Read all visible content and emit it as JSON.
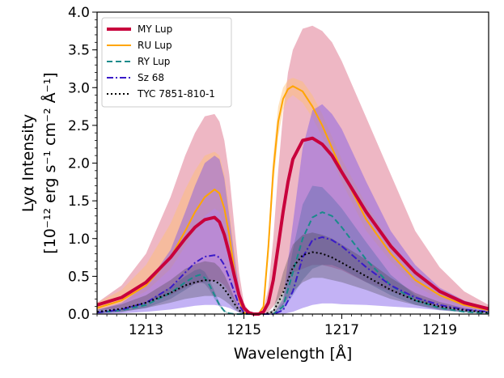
{
  "chart_data": {
    "type": "line",
    "title": "",
    "xlabel": "Wavelength [Å]",
    "ylabel_line1": "Lyα Intensity",
    "ylabel_line2": "[10⁻¹² erg s⁻¹ cm⁻² Å⁻¹]",
    "xlim": [
      1212.0,
      1220.0
    ],
    "ylim": [
      0.0,
      4.0
    ],
    "xticks": [
      1213,
      1215,
      1217,
      1219
    ],
    "xtick_labels": [
      "1213",
      "1215",
      "1217",
      "1219"
    ],
    "yticks": [
      0.0,
      0.5,
      1.0,
      1.5,
      2.0,
      2.5,
      3.0,
      3.5,
      4.0
    ],
    "ytick_labels": [
      "0.0",
      "0.5",
      "1.0",
      "1.5",
      "2.0",
      "2.5",
      "3.0",
      "3.5",
      "4.0"
    ],
    "legend_position": "top-left",
    "series": [
      {
        "name": "MY Lup",
        "color": "#c8003c",
        "dash": "solid",
        "x": [
          1212.0,
          1212.5,
          1213.0,
          1213.5,
          1213.8,
          1214.0,
          1214.2,
          1214.4,
          1214.5,
          1214.6,
          1214.7,
          1214.8,
          1214.9,
          1215.0,
          1215.1,
          1215.2,
          1215.3,
          1215.4,
          1215.5,
          1215.6,
          1215.7,
          1215.8,
          1215.9,
          1216.0,
          1216.2,
          1216.4,
          1216.6,
          1216.8,
          1217.0,
          1217.5,
          1218.0,
          1218.5,
          1219.0,
          1219.5,
          1220.0
        ],
        "y": [
          0.12,
          0.22,
          0.42,
          0.75,
          1.0,
          1.15,
          1.25,
          1.28,
          1.22,
          1.05,
          0.8,
          0.52,
          0.25,
          0.08,
          0.02,
          0.0,
          0.0,
          0.03,
          0.15,
          0.45,
          0.9,
          1.35,
          1.75,
          2.05,
          2.3,
          2.33,
          2.25,
          2.1,
          1.88,
          1.35,
          0.9,
          0.55,
          0.3,
          0.15,
          0.07
        ],
        "band_low": [
          0.05,
          0.08,
          0.15,
          0.25,
          0.35,
          0.4,
          0.42,
          0.45,
          0.43,
          0.38,
          0.28,
          0.18,
          0.08,
          0.02,
          0.0,
          0.0,
          0.0,
          0.0,
          0.03,
          0.1,
          0.2,
          0.3,
          0.45,
          0.55,
          0.6,
          0.65,
          0.65,
          0.62,
          0.58,
          0.42,
          0.3,
          0.18,
          0.1,
          0.05,
          0.02
        ],
        "band_high": [
          0.15,
          0.38,
          0.8,
          1.55,
          2.1,
          2.4,
          2.62,
          2.65,
          2.55,
          2.3,
          1.85,
          1.2,
          0.55,
          0.15,
          0.03,
          0.0,
          0.0,
          0.06,
          0.35,
          1.0,
          1.9,
          2.65,
          3.2,
          3.5,
          3.78,
          3.82,
          3.75,
          3.6,
          3.35,
          2.6,
          1.85,
          1.1,
          0.62,
          0.3,
          0.12
        ]
      },
      {
        "name": "RU Lup",
        "color": "#ffa500",
        "dash": "solid",
        "x": [
          1212.0,
          1212.5,
          1213.0,
          1213.5,
          1213.8,
          1214.0,
          1214.2,
          1214.4,
          1214.5,
          1214.6,
          1214.7,
          1214.8,
          1214.9,
          1215.0,
          1215.1,
          1215.2,
          1215.3,
          1215.4,
          1215.5,
          1215.6,
          1215.7,
          1215.8,
          1215.9,
          1216.0,
          1216.2,
          1216.4,
          1216.6,
          1216.8,
          1217.0,
          1217.5,
          1218.0,
          1218.5,
          1219.0,
          1219.5,
          1220.0
        ],
        "y": [
          0.08,
          0.18,
          0.38,
          0.75,
          1.1,
          1.35,
          1.55,
          1.65,
          1.6,
          1.4,
          1.05,
          0.6,
          0.2,
          0.02,
          0.0,
          0.0,
          0.0,
          0.1,
          0.9,
          1.9,
          2.55,
          2.85,
          2.98,
          3.02,
          2.95,
          2.75,
          2.5,
          2.2,
          1.9,
          1.25,
          0.8,
          0.45,
          0.25,
          0.12,
          0.05
        ],
        "band_low": [
          0.06,
          0.14,
          0.3,
          0.6,
          0.9,
          1.1,
          1.3,
          1.4,
          1.35,
          1.15,
          0.85,
          0.45,
          0.15,
          0.01,
          0.0,
          0.0,
          0.0,
          0.08,
          0.75,
          1.7,
          2.35,
          2.7,
          2.85,
          2.9,
          2.8,
          2.6,
          2.35,
          2.05,
          1.75,
          1.1,
          0.7,
          0.38,
          0.2,
          0.1,
          0.04
        ],
        "band_high": [
          0.15,
          0.32,
          0.65,
          1.2,
          1.65,
          1.9,
          2.1,
          2.15,
          2.1,
          1.85,
          1.4,
          0.85,
          0.3,
          0.03,
          0.0,
          0.0,
          0.0,
          0.12,
          1.05,
          2.1,
          2.75,
          3.0,
          3.1,
          3.13,
          3.08,
          2.9,
          2.65,
          2.35,
          2.05,
          1.45,
          0.95,
          0.55,
          0.3,
          0.15,
          0.06
        ]
      },
      {
        "name": "RY Lup",
        "color": "#1a8b8b",
        "dash": "dashed",
        "x": [
          1212.0,
          1212.5,
          1213.0,
          1213.5,
          1213.8,
          1214.0,
          1214.1,
          1214.2,
          1214.3,
          1214.4,
          1214.5,
          1214.6,
          1214.7,
          1214.8,
          1215.0,
          1215.2,
          1215.4,
          1215.6,
          1215.8,
          1216.0,
          1216.2,
          1216.4,
          1216.6,
          1216.8,
          1217.0,
          1217.5,
          1218.0,
          1218.5,
          1219.0,
          1219.5,
          1220.0
        ],
        "y": [
          0.02,
          0.05,
          0.12,
          0.28,
          0.42,
          0.5,
          0.52,
          0.48,
          0.38,
          0.25,
          0.12,
          0.04,
          0.01,
          0.0,
          0.0,
          0.0,
          0.0,
          0.0,
          0.1,
          0.55,
          1.0,
          1.28,
          1.35,
          1.3,
          1.15,
          0.72,
          0.38,
          0.18,
          0.08,
          0.03,
          0.01
        ],
        "band_low": [
          0.01,
          0.03,
          0.08,
          0.2,
          0.32,
          0.4,
          0.42,
          0.4,
          0.32,
          0.2,
          0.1,
          0.03,
          0.0,
          0.0,
          0.0,
          0.0,
          0.0,
          0.0,
          0.05,
          0.25,
          0.45,
          0.6,
          0.65,
          0.65,
          0.6,
          0.42,
          0.25,
          0.12,
          0.05,
          0.02,
          0.0
        ],
        "band_high": [
          0.03,
          0.07,
          0.16,
          0.36,
          0.5,
          0.58,
          0.6,
          0.56,
          0.45,
          0.3,
          0.15,
          0.05,
          0.01,
          0.0,
          0.0,
          0.0,
          0.0,
          0.0,
          0.15,
          0.85,
          1.45,
          1.7,
          1.68,
          1.55,
          1.4,
          0.95,
          0.52,
          0.25,
          0.1,
          0.04,
          0.01
        ]
      },
      {
        "name": "Sz 68",
        "color": "#3a1ac8",
        "dash": "dashdot",
        "x": [
          1212.0,
          1212.5,
          1213.0,
          1213.5,
          1213.8,
          1214.0,
          1214.2,
          1214.4,
          1214.5,
          1214.6,
          1214.7,
          1214.8,
          1214.9,
          1215.0,
          1215.2,
          1215.4,
          1215.6,
          1215.8,
          1216.0,
          1216.2,
          1216.4,
          1216.6,
          1216.8,
          1217.0,
          1217.5,
          1218.0,
          1218.5,
          1219.0,
          1219.5,
          1220.0
        ],
        "y": [
          0.02,
          0.06,
          0.15,
          0.35,
          0.55,
          0.68,
          0.76,
          0.78,
          0.75,
          0.65,
          0.48,
          0.3,
          0.12,
          0.02,
          0.0,
          0.0,
          0.0,
          0.05,
          0.3,
          0.75,
          0.98,
          1.02,
          0.98,
          0.9,
          0.62,
          0.38,
          0.22,
          0.12,
          0.06,
          0.03
        ],
        "band_low": [
          0.0,
          0.01,
          0.03,
          0.06,
          0.09,
          0.11,
          0.12,
          0.12,
          0.11,
          0.1,
          0.08,
          0.05,
          0.02,
          0.0,
          0.0,
          0.0,
          0.0,
          0.0,
          0.03,
          0.08,
          0.12,
          0.14,
          0.14,
          0.13,
          0.12,
          0.1,
          0.08,
          0.05,
          0.03,
          0.02
        ],
        "band_high": [
          0.05,
          0.15,
          0.38,
          0.85,
          1.35,
          1.7,
          2.0,
          2.1,
          2.05,
          1.8,
          1.3,
          0.8,
          0.35,
          0.05,
          0.0,
          0.0,
          0.0,
          0.2,
          1.2,
          2.2,
          2.7,
          2.78,
          2.65,
          2.45,
          1.75,
          1.1,
          0.65,
          0.35,
          0.18,
          0.08
        ]
      },
      {
        "name": "TYC 7851-810-1",
        "color": "#000000",
        "dash": "dotted",
        "x": [
          1212.0,
          1212.5,
          1213.0,
          1213.5,
          1213.8,
          1214.0,
          1214.2,
          1214.4,
          1214.5,
          1214.6,
          1214.7,
          1214.8,
          1214.9,
          1215.0,
          1215.2,
          1215.4,
          1215.6,
          1215.8,
          1216.0,
          1216.2,
          1216.4,
          1216.6,
          1216.8,
          1217.0,
          1217.5,
          1218.0,
          1218.5,
          1219.0,
          1219.5,
          1220.0
        ],
        "y": [
          0.03,
          0.07,
          0.15,
          0.28,
          0.38,
          0.42,
          0.45,
          0.44,
          0.4,
          0.33,
          0.24,
          0.14,
          0.05,
          0.01,
          0.0,
          0.0,
          0.03,
          0.28,
          0.62,
          0.78,
          0.82,
          0.8,
          0.75,
          0.68,
          0.5,
          0.32,
          0.18,
          0.1,
          0.05,
          0.02
        ],
        "band_low": [
          0.01,
          0.03,
          0.08,
          0.15,
          0.2,
          0.22,
          0.24,
          0.24,
          0.22,
          0.18,
          0.13,
          0.07,
          0.02,
          0.0,
          0.0,
          0.0,
          0.01,
          0.12,
          0.3,
          0.42,
          0.48,
          0.48,
          0.45,
          0.42,
          0.32,
          0.2,
          0.12,
          0.06,
          0.03,
          0.01
        ],
        "band_high": [
          0.06,
          0.13,
          0.25,
          0.45,
          0.6,
          0.66,
          0.7,
          0.68,
          0.62,
          0.52,
          0.38,
          0.22,
          0.08,
          0.02,
          0.0,
          0.0,
          0.06,
          0.55,
          0.92,
          1.05,
          1.08,
          1.05,
          1.0,
          0.92,
          0.72,
          0.48,
          0.28,
          0.16,
          0.08,
          0.03
        ]
      }
    ]
  }
}
